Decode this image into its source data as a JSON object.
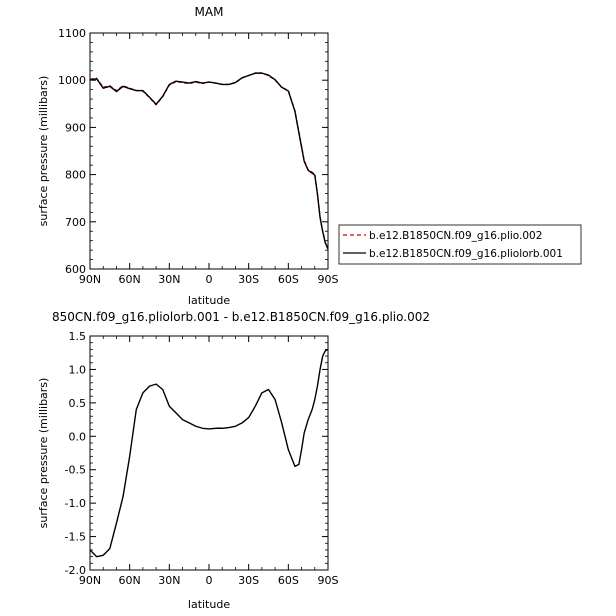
{
  "chart_data": [
    {
      "type": "line",
      "title": "MAM",
      "xlabel": "latitude",
      "ylabel": "surface pressure (millibars)",
      "xlim": [
        -90,
        90
      ],
      "ylim": [
        600,
        1100
      ],
      "x_ticks": [
        "90N",
        "60N",
        "30N",
        "0",
        "30S",
        "60S",
        "90S"
      ],
      "y_ticks": [
        "600",
        "700",
        "800",
        "900",
        "1000",
        "1100"
      ],
      "x": [
        -90,
        -85,
        -80,
        -75,
        -70,
        -65,
        -60,
        -55,
        -50,
        -45,
        -40,
        -35,
        -30,
        -25,
        -20,
        -15,
        -10,
        -5,
        0,
        5,
        10,
        15,
        20,
        25,
        30,
        35,
        40,
        45,
        50,
        55,
        60,
        65,
        68,
        70,
        72,
        75,
        78,
        80,
        82,
        84,
        86,
        88,
        90
      ],
      "series": [
        {
          "name": "b.e12.B1850CN.f09_g16.plio.002",
          "color": "#cc0000",
          "dash": "dashed",
          "values": [
            1002,
            1004,
            985,
            988,
            978,
            988,
            983,
            978,
            977,
            963,
            948,
            965,
            990,
            997,
            995,
            993,
            996,
            993,
            996,
            994,
            991,
            991,
            995,
            1005,
            1010,
            1015,
            1015,
            1010,
            1000,
            985,
            978,
            935,
            890,
            860,
            830,
            810,
            805,
            800,
            760,
            710,
            680,
            655,
            642
          ]
        },
        {
          "name": "b.e12.B1850CN.f09_g16.pliolorb.001",
          "color": "#000000",
          "dash": "solid",
          "values": [
            1001,
            1003,
            983,
            987,
            976,
            987,
            982,
            978,
            978,
            964,
            949,
            966,
            991,
            998,
            996,
            994,
            997,
            994,
            996,
            994,
            991,
            991,
            995,
            1005,
            1010,
            1015,
            1015,
            1011,
            1001,
            985,
            977,
            934,
            888,
            858,
            828,
            809,
            803,
            799,
            759,
            709,
            679,
            655,
            643
          ]
        }
      ]
    },
    {
      "type": "line",
      "title": "850CN.f09_g16.pliolorb.001 - b.e12.B1850CN.f09_g16.plio.002",
      "xlabel": "latitude",
      "ylabel": "surface pressure (millibars)",
      "xlim": [
        -90,
        90
      ],
      "ylim": [
        -2.0,
        1.5
      ],
      "x_ticks": [
        "90N",
        "60N",
        "30N",
        "0",
        "30S",
        "60S",
        "90S"
      ],
      "y_ticks": [
        "-2.0",
        "-1.5",
        "-1.0",
        "-0.5",
        "0.0",
        "0.5",
        "1.0",
        "1.5"
      ],
      "x": [
        -90,
        -85,
        -80,
        -75,
        -70,
        -65,
        -60,
        -55,
        -50,
        -45,
        -40,
        -35,
        -30,
        -25,
        -20,
        -15,
        -10,
        -5,
        0,
        5,
        10,
        15,
        20,
        25,
        30,
        35,
        40,
        45,
        50,
        55,
        60,
        65,
        68,
        70,
        72,
        75,
        78,
        80,
        82,
        84,
        86,
        88,
        90
      ],
      "series": [
        {
          "name": "",
          "color": "#000000",
          "dash": "solid",
          "values": [
            -1.7,
            -1.8,
            -1.78,
            -1.68,
            -1.3,
            -0.9,
            -0.3,
            0.4,
            0.65,
            0.75,
            0.78,
            0.7,
            0.45,
            0.35,
            0.25,
            0.2,
            0.15,
            0.12,
            0.11,
            0.12,
            0.12,
            0.13,
            0.15,
            0.2,
            0.28,
            0.45,
            0.65,
            0.7,
            0.55,
            0.2,
            -0.2,
            -0.45,
            -0.42,
            -0.2,
            0.05,
            0.25,
            0.4,
            0.55,
            0.75,
            1.0,
            1.2,
            1.28,
            1.3
          ]
        }
      ]
    }
  ]
}
